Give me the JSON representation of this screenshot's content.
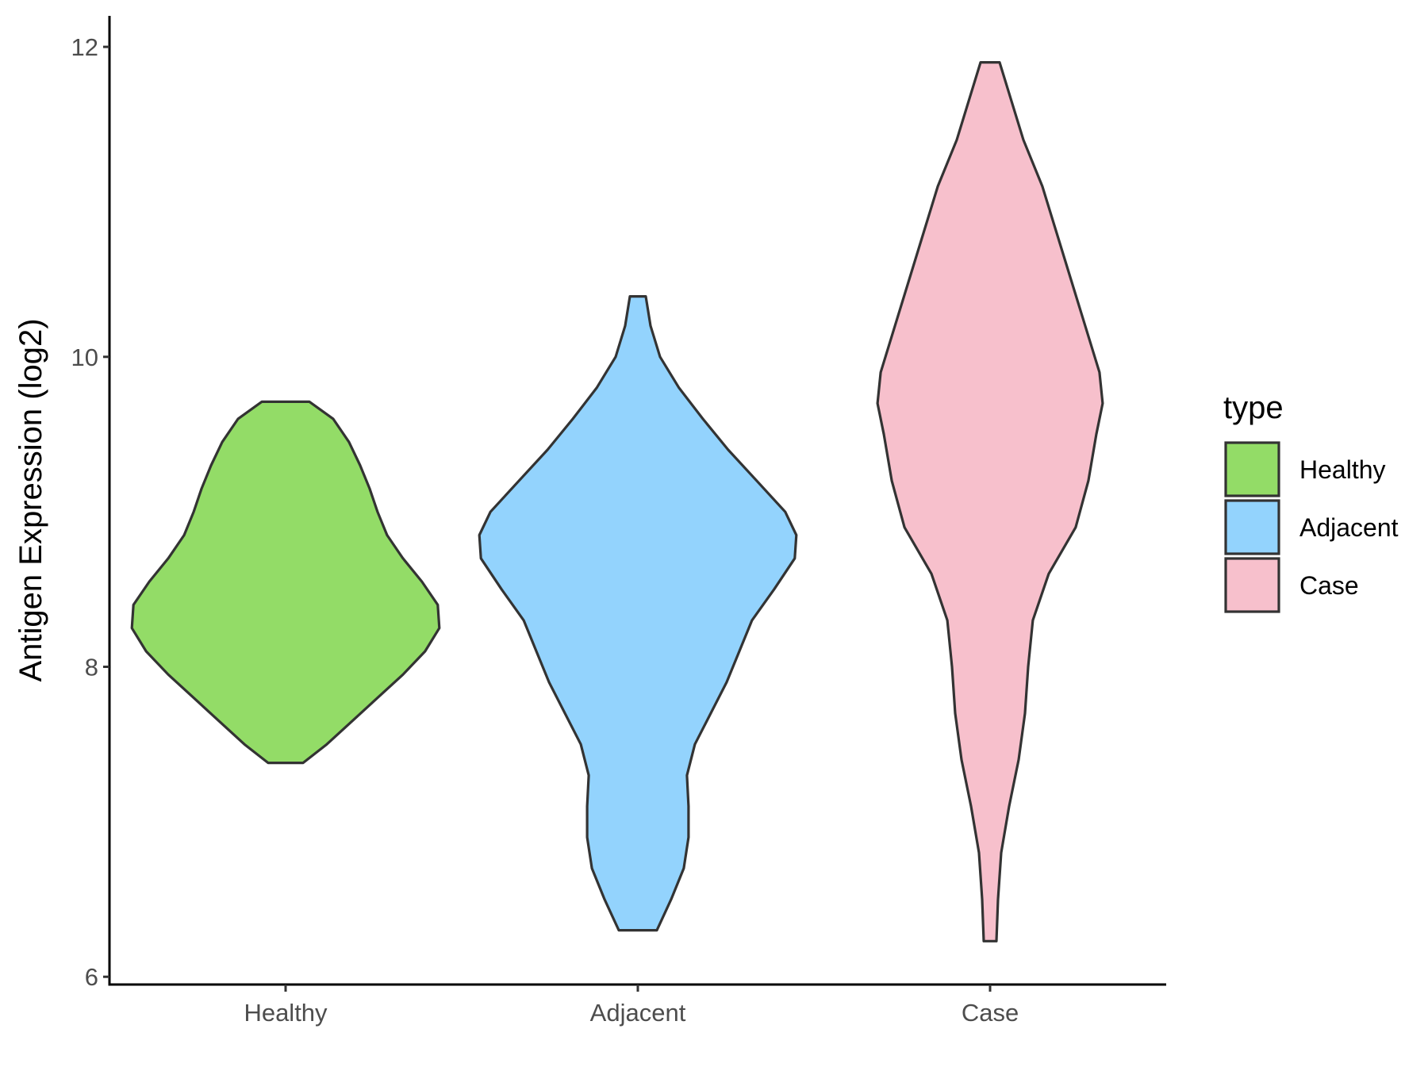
{
  "chart_data": {
    "type": "violin",
    "ylabel": "Antigen Expression (log2)",
    "xlabel": "",
    "ylim": [
      5.95,
      12.2
    ],
    "yticks": [
      6,
      8,
      10,
      12
    ],
    "categories": [
      "Healthy",
      "Adjacent",
      "Case"
    ],
    "legend": {
      "title": "type",
      "position": "right"
    },
    "grid": false,
    "series": [
      {
        "name": "Healthy",
        "color": "#93dc67",
        "profile": [
          [
            7.38,
            0.11
          ],
          [
            7.5,
            0.26
          ],
          [
            7.65,
            0.42
          ],
          [
            7.8,
            0.58
          ],
          [
            7.95,
            0.74
          ],
          [
            8.1,
            0.88
          ],
          [
            8.25,
            0.97
          ],
          [
            8.4,
            0.96
          ],
          [
            8.55,
            0.86
          ],
          [
            8.7,
            0.74
          ],
          [
            8.85,
            0.64
          ],
          [
            9.0,
            0.58
          ],
          [
            9.15,
            0.53
          ],
          [
            9.3,
            0.47
          ],
          [
            9.45,
            0.4
          ],
          [
            9.6,
            0.3
          ],
          [
            9.71,
            0.15
          ]
        ]
      },
      {
        "name": "Adjacent",
        "color": "#93d3fd",
        "profile": [
          [
            6.3,
            0.12
          ],
          [
            6.5,
            0.21
          ],
          [
            6.7,
            0.29
          ],
          [
            6.9,
            0.32
          ],
          [
            7.1,
            0.32
          ],
          [
            7.3,
            0.31
          ],
          [
            7.5,
            0.36
          ],
          [
            7.7,
            0.46
          ],
          [
            7.9,
            0.56
          ],
          [
            8.1,
            0.64
          ],
          [
            8.3,
            0.72
          ],
          [
            8.5,
            0.86
          ],
          [
            8.7,
            0.99
          ],
          [
            8.85,
            1.0
          ],
          [
            9.0,
            0.93
          ],
          [
            9.2,
            0.75
          ],
          [
            9.4,
            0.57
          ],
          [
            9.6,
            0.41
          ],
          [
            9.8,
            0.26
          ],
          [
            10.0,
            0.14
          ],
          [
            10.2,
            0.08
          ],
          [
            10.39,
            0.05
          ]
        ]
      },
      {
        "name": "Case",
        "color": "#f7c0cc",
        "profile": [
          [
            6.23,
            0.04
          ],
          [
            6.5,
            0.05
          ],
          [
            6.8,
            0.07
          ],
          [
            7.1,
            0.12
          ],
          [
            7.4,
            0.18
          ],
          [
            7.7,
            0.22
          ],
          [
            8.0,
            0.24
          ],
          [
            8.3,
            0.27
          ],
          [
            8.6,
            0.37
          ],
          [
            8.9,
            0.54
          ],
          [
            9.2,
            0.62
          ],
          [
            9.5,
            0.67
          ],
          [
            9.7,
            0.71
          ],
          [
            9.9,
            0.69
          ],
          [
            10.2,
            0.6
          ],
          [
            10.5,
            0.51
          ],
          [
            10.8,
            0.42
          ],
          [
            11.1,
            0.33
          ],
          [
            11.4,
            0.21
          ],
          [
            11.7,
            0.12
          ],
          [
            11.9,
            0.06
          ]
        ]
      }
    ]
  }
}
